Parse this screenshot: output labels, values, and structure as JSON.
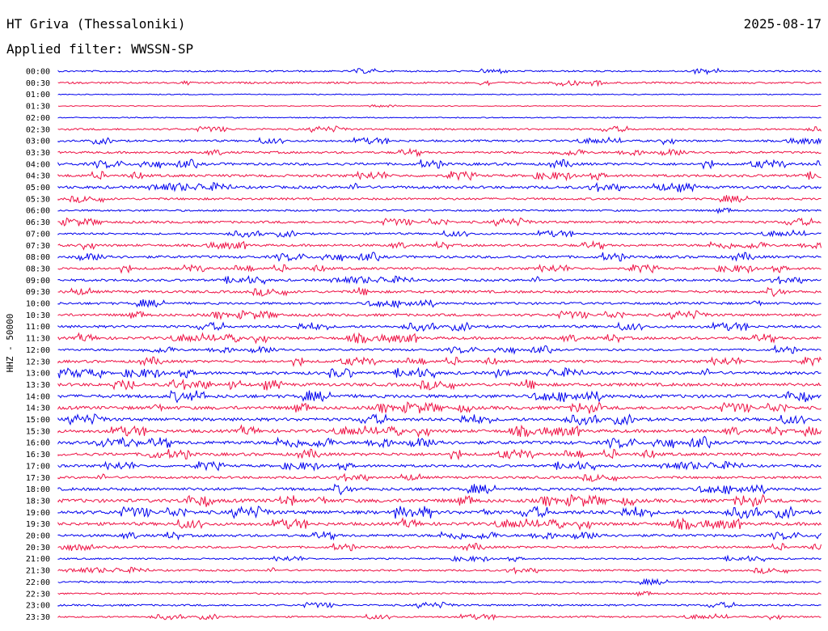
{
  "header": {
    "station": "HT Griva (Thessaloniki)",
    "date": "2025-08-17",
    "filter_text": "Applied filter: WWSSN-SP"
  },
  "chart_data": {
    "type": "line",
    "ylabel": "HHZ - 50000",
    "colors": [
      "#0000ee",
      "#ee1144"
    ],
    "traces": [
      {
        "label": "00:00",
        "activity": 0.5
      },
      {
        "label": "00:30",
        "activity": 0.6
      },
      {
        "label": "01:00",
        "activity": 0.15
      },
      {
        "label": "01:30",
        "activity": 0.1
      },
      {
        "label": "02:00",
        "activity": 0.2
      },
      {
        "label": "02:30",
        "activity": 0.6
      },
      {
        "label": "03:00",
        "activity": 0.7
      },
      {
        "label": "03:30",
        "activity": 0.8
      },
      {
        "label": "04:00",
        "activity": 1.0
      },
      {
        "label": "04:30",
        "activity": 1.0
      },
      {
        "label": "05:00",
        "activity": 1.1
      },
      {
        "label": "05:30",
        "activity": 0.8
      },
      {
        "label": "06:00",
        "activity": 0.6
      },
      {
        "label": "06:30",
        "activity": 0.9
      },
      {
        "label": "07:00",
        "activity": 0.7
      },
      {
        "label": "07:30",
        "activity": 0.9
      },
      {
        "label": "08:00",
        "activity": 1.0
      },
      {
        "label": "08:30",
        "activity": 0.9
      },
      {
        "label": "09:00",
        "activity": 0.9
      },
      {
        "label": "09:30",
        "activity": 1.0
      },
      {
        "label": "10:00",
        "activity": 0.9
      },
      {
        "label": "10:30",
        "activity": 1.0
      },
      {
        "label": "11:00",
        "activity": 1.0
      },
      {
        "label": "11:30",
        "activity": 1.1
      },
      {
        "label": "12:00",
        "activity": 0.8
      },
      {
        "label": "12:30",
        "activity": 1.0
      },
      {
        "label": "13:00",
        "activity": 1.2
      },
      {
        "label": "13:30",
        "activity": 1.3
      },
      {
        "label": "14:00",
        "activity": 1.4
      },
      {
        "label": "14:30",
        "activity": 1.4
      },
      {
        "label": "15:00",
        "activity": 1.3
      },
      {
        "label": "15:30",
        "activity": 1.3
      },
      {
        "label": "16:00",
        "activity": 1.4
      },
      {
        "label": "16:30",
        "activity": 1.2
      },
      {
        "label": "17:00",
        "activity": 1.0
      },
      {
        "label": "17:30",
        "activity": 0.9
      },
      {
        "label": "18:00",
        "activity": 1.2
      },
      {
        "label": "18:30",
        "activity": 1.5
      },
      {
        "label": "19:00",
        "activity": 1.5
      },
      {
        "label": "19:30",
        "activity": 1.3
      },
      {
        "label": "20:00",
        "activity": 1.0
      },
      {
        "label": "20:30",
        "activity": 0.8
      },
      {
        "label": "21:00",
        "activity": 0.5
      },
      {
        "label": "21:30",
        "activity": 0.6
      },
      {
        "label": "22:00",
        "activity": 0.6
      },
      {
        "label": "22:30",
        "activity": 0.5
      },
      {
        "label": "23:00",
        "activity": 0.6
      },
      {
        "label": "23:30",
        "activity": 0.5
      }
    ]
  }
}
